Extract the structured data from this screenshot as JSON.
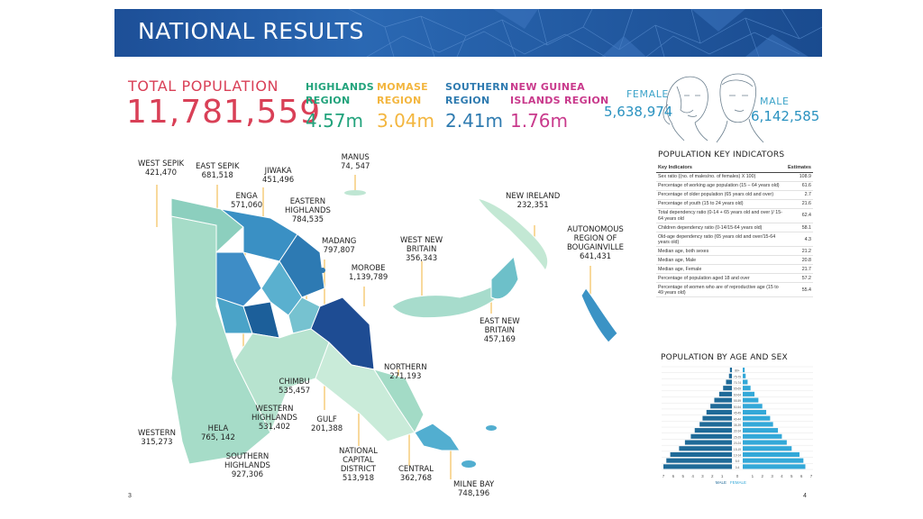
{
  "header": {
    "title": "NATIONAL RESULTS"
  },
  "total": {
    "label": "TOTAL POPULATION",
    "value": "11,781,559"
  },
  "regions": [
    {
      "name_line1": "HIGHLANDS",
      "name_line2": "REGION",
      "value": "4.57m",
      "color": "#22a37c"
    },
    {
      "name_line1": "MOMASE",
      "name_line2": "REGION",
      "value": "3.04m",
      "color": "#f3b63f"
    },
    {
      "name_line1": "SOUTHERN",
      "name_line2": "REGION",
      "value": "2.41m",
      "color": "#2f7bb0"
    },
    {
      "name_line1": "NEW GUINEA",
      "name_line2": "ISLANDS REGION",
      "value": "1.76m",
      "color": "#c93a8c"
    }
  ],
  "sex": {
    "female_label": "FEMALE",
    "female_value": "5,638,974",
    "male_label": "MALE",
    "male_value": "6,142,585"
  },
  "map_labels": {
    "west_sepik": {
      "name": "WEST SEPIK",
      "value": "421,470"
    },
    "east_sepik": {
      "name": "EAST SEPIK",
      "value": "681,518"
    },
    "jiwaka": {
      "name": "JIWAKA",
      "value": "451,496"
    },
    "manus": {
      "name": "MANUS",
      "value": "74, 547"
    },
    "enga": {
      "name": "ENGA",
      "value": "571,060"
    },
    "eastern_highlands": {
      "name1": "EASTERN",
      "name2": "HIGHLANDS",
      "value": "784,535"
    },
    "madang": {
      "name": "MADANG",
      "value": "797,807"
    },
    "morobe": {
      "name": "MOROBE",
      "value": "1,139,789"
    },
    "west_new_britain": {
      "name1": "WEST NEW",
      "name2": "BRITAIN",
      "value": "356,343"
    },
    "new_ireland": {
      "name": "NEW IRELAND",
      "value": "232,351"
    },
    "bougainville": {
      "name1": "AUTONOMOUS",
      "name2": "REGION OF",
      "name3": "BOUGAINVILLE",
      "value": "641,431"
    },
    "east_new_britain": {
      "name1": "EAST NEW",
      "name2": "BRITAIN",
      "value": "457,169"
    },
    "northern": {
      "name": "NORTHERN",
      "value": "271,193"
    },
    "chimbu": {
      "name": "CHIMBU",
      "value": "535,457"
    },
    "western_highlands": {
      "name1": "WESTERN",
      "name2": "HIGHLANDS",
      "value": "531,402"
    },
    "gulf": {
      "name": "GULF",
      "value": "201,388"
    },
    "western": {
      "name": "WESTERN",
      "value": "315,273"
    },
    "hela": {
      "name": "HELA",
      "value": "765, 142"
    },
    "southern_highlands": {
      "name1": "SOUTHERN",
      "name2": "HIGHLANDS",
      "value": "927,306"
    },
    "ncd": {
      "name1": "NATIONAL",
      "name2": "CAPITAL",
      "name3": "DISTRICT",
      "value": "513,918"
    },
    "central": {
      "name": "CENTRAL",
      "value": "362,768"
    },
    "milne_bay": {
      "name": "MILNE BAY",
      "value": "748,196"
    }
  },
  "indicators": {
    "title": "POPULATION KEY INDICATORS",
    "col_indicator": "Key Indicators",
    "col_estimate": "Estimates",
    "rows": [
      {
        "label": "Sex ratio ((no. of males/no. of females) X 100)",
        "value": "108.9"
      },
      {
        "label": "Percentage of working age population (15 – 64 years old)",
        "value": "61.6"
      },
      {
        "label": "Percentage of older population (65 years old and over)",
        "value": "2.7"
      },
      {
        "label": "Percentage of youth (15 to 24 years old)",
        "value": "21.6"
      },
      {
        "label": "Total dependency ratio (0-14 + 65 years old and over )/ 15-64 years old",
        "value": "62.4"
      },
      {
        "label": "Children dependency ratio (0-14/15-64 years old)",
        "value": "58.1"
      },
      {
        "label": "Old-age dependency ratio (65 years old and over/15-64 years old)",
        "value": "4.3"
      },
      {
        "label": "Median age, both sexes",
        "value": "21.2"
      },
      {
        "label": "Median age, Male",
        "value": "20.8"
      },
      {
        "label": "Median age, Female",
        "value": "21.7"
      },
      {
        "label": "Percentage of population aged 18 and over",
        "value": "57.2"
      },
      {
        "label": "Percentage of women who are of reproductive age (15 to 49 years old)",
        "value": "55.4"
      }
    ]
  },
  "pyramid": {
    "title": "POPULATION BY AGE AND SEX",
    "male_label": "MALE",
    "female_label": "FEMALE",
    "male_color": "#1f6a98",
    "female_color": "#33a8d8"
  },
  "chart_data": {
    "type": "bar",
    "title": "POPULATION BY AGE AND SEX",
    "orientation": "horizontal-pyramid",
    "categories": [
      "0-4",
      "5-9",
      "10-14",
      "15-19",
      "20-24",
      "25-29",
      "30-34",
      "35-39",
      "40-44",
      "45-49",
      "50-54",
      "55-59",
      "60-64",
      "65-69",
      "70-74",
      "75-79",
      "80+"
    ],
    "series": [
      {
        "name": "MALE",
        "values": [
          7.0,
          6.7,
          6.3,
          5.4,
          4.8,
          4.2,
          3.8,
          3.3,
          3.0,
          2.6,
          2.2,
          1.8,
          1.3,
          0.9,
          0.6,
          0.3,
          0.2
        ]
      },
      {
        "name": "FEMALE",
        "values": [
          6.4,
          6.2,
          5.8,
          5.0,
          4.5,
          4.0,
          3.6,
          3.1,
          2.8,
          2.4,
          2.0,
          1.6,
          1.2,
          0.8,
          0.5,
          0.3,
          0.2
        ]
      }
    ],
    "xticks": [
      "7",
      "6",
      "5",
      "4",
      "3",
      "2",
      "1",
      "0",
      "1",
      "2",
      "3",
      "4",
      "5",
      "6",
      "7"
    ],
    "xlim": [
      -7,
      7
    ],
    "xlabel_left": "MALE",
    "xlabel_right": "FEMALE"
  },
  "footer": {
    "page_left": "3",
    "page_right": "4"
  }
}
